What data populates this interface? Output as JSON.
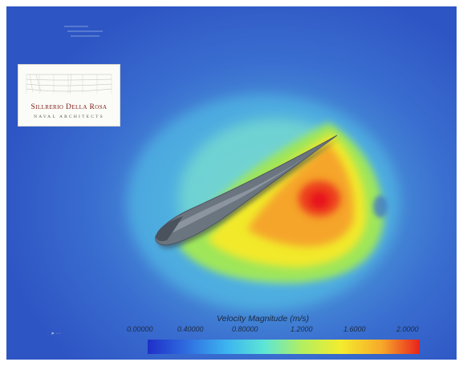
{
  "legend": {
    "title": "Velocity Magnitude (m/s)",
    "ticks": [
      "0.00000",
      "0.40000",
      "0.80000",
      "1.2000",
      "1.6000",
      "2.0000"
    ],
    "colormap": [
      "#1e2fc8",
      "#2f6be0",
      "#3cb4f0",
      "#5de6d6",
      "#b4ef5e",
      "#f3ec2e",
      "#f7a92a",
      "#e8231c"
    ]
  },
  "logo": {
    "name": "Sillrerio Della Rosa",
    "subtitle": "NAVAL ARCHITECTS"
  },
  "colors": {
    "background": "#3a6ed0",
    "foil": "#6b7580",
    "peak": "#e8231c"
  }
}
